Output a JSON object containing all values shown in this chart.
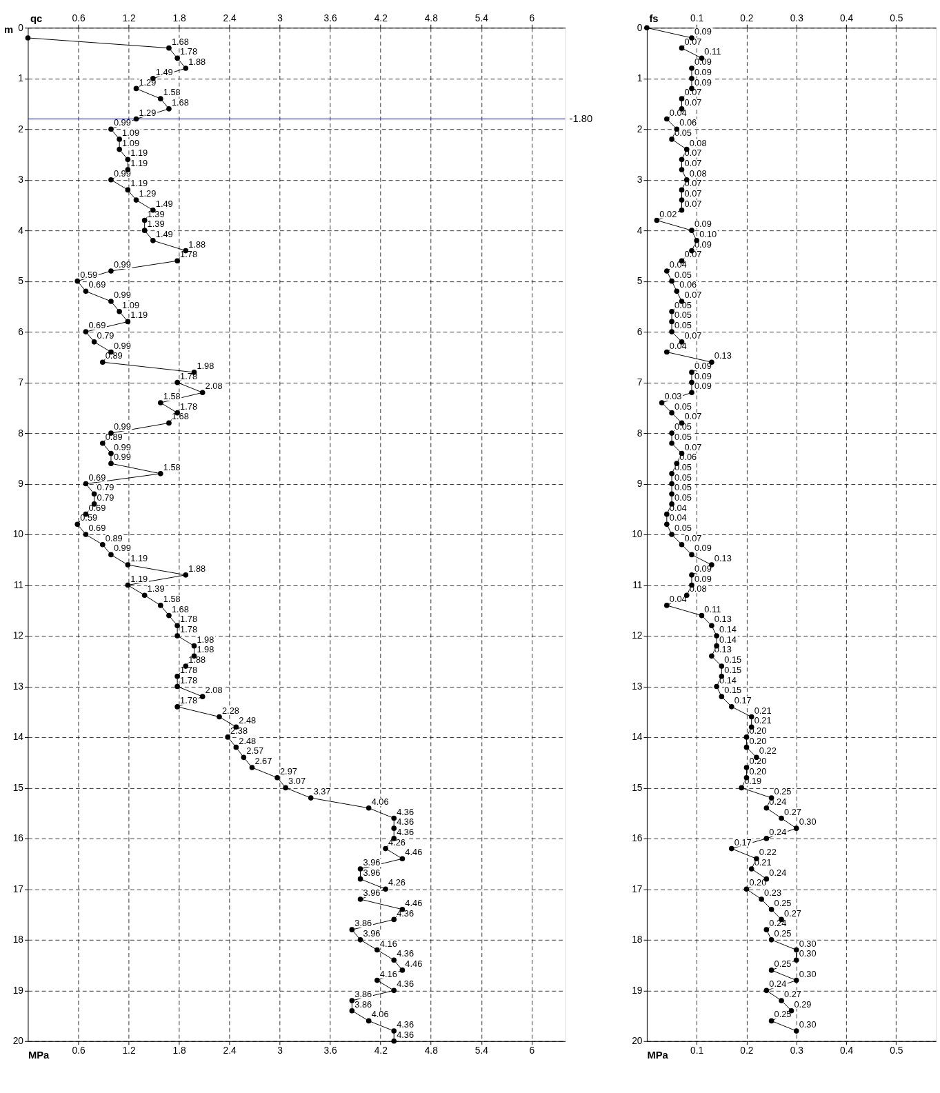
{
  "chart_data": [
    {
      "type": "line",
      "orientation": "horizontal",
      "xlabel": "MPa",
      "x2label": "qc",
      "ylabel": "m",
      "xlim": [
        0,
        6.4
      ],
      "xticks": [
        0.6,
        1.2,
        1.8,
        2.4,
        3,
        3.6,
        4.2,
        4.8,
        5.4,
        6
      ],
      "x2lim": [
        0,
        6.4
      ],
      "x2ticks": [
        0.6,
        1.2,
        1.8,
        2.4,
        3,
        3.6,
        4.2,
        4.8,
        5.4,
        6
      ],
      "ylim": [
        20,
        0
      ],
      "yticks": [
        0,
        1,
        2,
        3,
        4,
        5,
        6,
        7,
        8,
        9,
        10,
        11,
        12,
        13,
        14,
        15,
        16,
        17,
        18,
        19,
        20
      ],
      "grid": true,
      "marker": "circle",
      "line_style": "solid",
      "ref_lines": [
        {
          "axis": "y",
          "value": 1.8,
          "color": "#0000ff"
        }
      ],
      "annotations": [
        "-1.80"
      ],
      "series": [
        {
          "color": "#000000",
          "x": [
            0.2,
            0.4,
            0.6,
            0.8,
            1.0,
            1.2,
            1.4,
            1.6,
            1.8,
            2.0,
            2.2,
            2.4,
            2.6,
            2.8,
            3.0,
            3.2,
            3.4,
            3.6,
            3.8,
            4.0,
            4.2,
            4.4,
            4.6,
            4.8,
            5.0,
            5.2,
            5.4,
            5.6,
            5.8,
            6.0,
            6.2,
            6.4,
            6.6,
            6.8,
            7.0,
            7.2,
            7.4,
            7.6,
            7.8,
            8.0,
            8.2,
            8.4,
            8.6,
            8.8,
            9.0,
            9.2,
            9.4,
            9.6,
            9.8,
            10.0,
            10.2,
            10.4,
            10.6,
            10.8,
            11.0,
            11.2,
            11.4,
            11.6,
            11.8,
            12.0,
            12.2,
            12.4,
            12.6,
            12.8,
            13.0,
            13.2,
            13.4,
            13.6,
            13.8,
            14.0,
            14.2,
            14.4,
            14.6,
            14.8,
            15.0,
            15.2,
            15.4,
            15.6,
            15.8,
            16.0,
            16.2,
            16.4,
            16.6,
            16.8,
            17.0,
            17.2,
            17.4,
            17.6,
            17.8,
            18.0,
            18.2,
            18.4,
            18.6,
            18.8,
            19.0,
            19.2,
            19.4,
            19.6,
            19.8,
            20.0
          ],
          "values": [
            0,
            1.68,
            1.78,
            1.88,
            1.49,
            1.29,
            1.58,
            1.68,
            1.29,
            0.99,
            1.09,
            1.09,
            1.19,
            1.19,
            0.99,
            1.19,
            1.29,
            1.49,
            1.39,
            1.39,
            1.49,
            1.88,
            1.78,
            0.99,
            0.59,
            0.69,
            0.99,
            1.09,
            1.19,
            0.69,
            0.79,
            0.99,
            0.89,
            1.98,
            1.78,
            2.08,
            1.58,
            1.78,
            1.68,
            0.99,
            0.89,
            0.99,
            0.99,
            1.58,
            0.69,
            0.79,
            0.79,
            0.69,
            0.59,
            0.69,
            0.89,
            0.99,
            1.19,
            1.88,
            1.19,
            1.39,
            1.58,
            1.68,
            1.78,
            1.78,
            1.98,
            1.98,
            1.88,
            1.78,
            1.78,
            2.08,
            1.78,
            2.28,
            2.48,
            2.38,
            2.48,
            2.57,
            2.67,
            2.97,
            3.07,
            3.37,
            4.06,
            4.36,
            4.36,
            4.36,
            4.26,
            4.46,
            3.96,
            3.96,
            4.26,
            3.96,
            4.46,
            4.36,
            3.86,
            3.96,
            4.16,
            4.36,
            4.46,
            4.16,
            4.36,
            3.86,
            3.86,
            4.06,
            4.36,
            4.36
          ],
          "value_labels": [
            null,
            "1.68",
            "1.78",
            "1.88",
            "1.49",
            "1.29",
            "1.58",
            "1.68",
            "1.29",
            "0.99",
            "1.09",
            "1.09",
            "1.19",
            "1.19",
            "0.99",
            "1.19",
            "1.29",
            "1.49",
            "1.39",
            "1.39",
            "1.49",
            "1.88",
            "1.78",
            "0.99",
            "0.59",
            "0.69",
            "0.99",
            "1.09",
            "1.19",
            "0.69",
            "0.79",
            "0.99",
            "0.89",
            "1.98",
            "1.78",
            "2.08",
            "1.58",
            "1.78",
            "1.68",
            "0.99",
            "0.89",
            "0.99",
            "0.99",
            "1.58",
            "0.69",
            "0.79",
            "0.79",
            "0.69",
            "0.59",
            "0.69",
            "0.89",
            "0.99",
            "1.19",
            "1.88",
            "1.19",
            "1.39",
            "1.58",
            "1.68",
            "1.78",
            "1.78",
            "1.98",
            "1.98",
            "1.88",
            "1.78",
            "1.78",
            "2.08",
            "1.78",
            "2.28",
            "2.48",
            "2.38",
            "2.48",
            "2.57",
            "2.67",
            "2.97",
            "3.07",
            "3.37",
            "4.06",
            "4.36",
            "4.36",
            "4.36",
            "4.26",
            "4.46",
            "3.96",
            "3.96",
            "4.26",
            "3.96",
            "4.46",
            "4.36",
            "3.86",
            "3.96",
            "4.16",
            "4.36",
            "4.46",
            "4.16",
            "4.36",
            "3.86",
            "3.86",
            "4.06",
            "4.36",
            "4.36"
          ]
        }
      ]
    },
    {
      "type": "line",
      "orientation": "horizontal",
      "xlabel": "MPa",
      "x2label": "fs",
      "xlim": [
        0,
        0.58
      ],
      "xticks": [
        0.1,
        0.2,
        0.3,
        0.4,
        0.5
      ],
      "x2lim": [
        0,
        0.58
      ],
      "x2ticks": [
        0.1,
        0.2,
        0.3,
        0.4,
        0.5
      ],
      "ylim": [
        20,
        0
      ],
      "yticks": [
        0,
        1,
        2,
        3,
        4,
        5,
        6,
        7,
        8,
        9,
        10,
        11,
        12,
        13,
        14,
        15,
        16,
        17,
        18,
        19,
        20
      ],
      "grid": true,
      "marker": "circle",
      "line_style": "solid",
      "series": [
        {
          "color": "#000000",
          "x": [
            0.0,
            0.2,
            0.4,
            0.6,
            0.8,
            1.0,
            1.2,
            1.4,
            1.6,
            1.8,
            2.0,
            2.2,
            2.4,
            2.6,
            2.8,
            3.0,
            3.2,
            3.4,
            3.6,
            3.8,
            4.0,
            4.2,
            4.4,
            4.6,
            4.8,
            5.0,
            5.2,
            5.4,
            5.6,
            5.8,
            6.0,
            6.2,
            6.4,
            6.6,
            6.8,
            7.0,
            7.2,
            7.4,
            7.6,
            7.8,
            8.0,
            8.2,
            8.4,
            8.6,
            8.8,
            9.0,
            9.2,
            9.4,
            9.6,
            9.8,
            10.0,
            10.2,
            10.4,
            10.6,
            10.8,
            11.0,
            11.2,
            11.4,
            11.6,
            11.8,
            12.0,
            12.2,
            12.4,
            12.6,
            12.8,
            13.0,
            13.2,
            13.4,
            13.6,
            13.8,
            14.0,
            14.2,
            14.4,
            14.6,
            14.8,
            15.0,
            15.2,
            15.4,
            15.6,
            15.8,
            16.0,
            16.2,
            16.4,
            16.6,
            16.8,
            17.0,
            17.2,
            17.4,
            17.6,
            17.8,
            18.0,
            18.2,
            18.4,
            18.6,
            18.8,
            19.0,
            19.2,
            19.4,
            19.6,
            19.8
          ],
          "values": [
            0,
            0.09,
            0.07,
            0.11,
            0.09,
            0.09,
            0.09,
            0.07,
            0.07,
            0.04,
            0.06,
            0.05,
            0.08,
            0.07,
            0.07,
            0.08,
            0.07,
            0.07,
            0.07,
            0.02,
            0.09,
            0.1,
            0.09,
            0.07,
            0.04,
            0.05,
            0.06,
            0.07,
            0.05,
            0.05,
            0.05,
            0.07,
            0.04,
            0.13,
            0.09,
            0.09,
            0.09,
            0.03,
            0.05,
            0.07,
            0.05,
            0.05,
            0.07,
            0.06,
            0.05,
            0.05,
            0.05,
            0.05,
            0.04,
            0.04,
            0.05,
            0.07,
            0.09,
            0.13,
            0.09,
            0.09,
            0.08,
            0.04,
            0.11,
            0.13,
            0.14,
            0.14,
            0.13,
            0.15,
            0.15,
            0.14,
            0.15,
            0.17,
            0.21,
            0.21,
            0.2,
            0.2,
            0.22,
            0.2,
            0.2,
            0.19,
            0.25,
            0.24,
            0.27,
            0.3,
            0.24,
            0.17,
            0.22,
            0.21,
            0.24,
            0.2,
            0.23,
            0.25,
            0.27,
            0.24,
            0.25,
            0.3,
            0.3,
            0.25,
            0.3,
            0.24,
            0.27,
            0.29,
            0.25,
            0.3
          ],
          "value_labels": [
            null,
            "0.09",
            "0.07",
            "0.11",
            "0.09",
            "0.09",
            "0.09",
            "0.07",
            "0.07",
            "0.04",
            "0.06",
            "0.05",
            "0.08",
            "0.07",
            "0.07",
            "0.08",
            "0.07",
            "0.07",
            "0.07",
            "0.02",
            "0.09",
            "0.10",
            "0.09",
            "0.07",
            "0.04",
            "0.05",
            "0.06",
            "0.07",
            "0.05",
            "0.05",
            "0.05",
            "0.07",
            "0.04",
            "0.13",
            "0.09",
            "0.09",
            "0.09",
            "0.03",
            "0.05",
            "0.07",
            "0.05",
            "0.05",
            "0.07",
            "0.06",
            "0.05",
            "0.05",
            "0.05",
            "0.05",
            "0.04",
            "0.04",
            "0.05",
            "0.07",
            "0.09",
            "0.13",
            "0.09",
            "0.09",
            "0.08",
            "0.04",
            "0.11",
            "0.13",
            "0.14",
            "0.14",
            "0.13",
            "0.15",
            "0.15",
            "0.14",
            "0.15",
            "0.17",
            "0.21",
            "0.21",
            "0.20",
            "0.20",
            "0.22",
            "0.20",
            "0.20",
            "0.19",
            "0.25",
            "0.24",
            "0.27",
            "0.30",
            "0.24",
            "0.17",
            "0.22",
            "0.21",
            "0.24",
            "0.20",
            "0.23",
            "0.25",
            "0.27",
            "0.24",
            "0.25",
            "0.30",
            "0.30",
            "0.25",
            "0.30",
            "0.24",
            "0.27",
            "0.29",
            "0.25",
            "0.30"
          ]
        }
      ]
    }
  ]
}
